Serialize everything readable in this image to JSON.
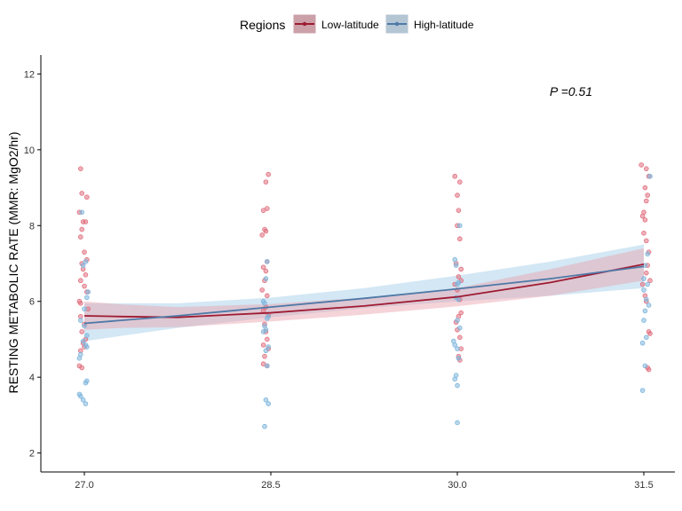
{
  "chart_data": {
    "type": "scatter",
    "legend": {
      "title": "Regions",
      "position": "top",
      "items": [
        {
          "name": "Low-latitude",
          "color": "#9e1b32"
        },
        {
          "name": "High-latitude",
          "color": "#4e79a7"
        }
      ]
    },
    "ylabel": "RESTING METABOLIC RATE (MMR: MgO2/hr)",
    "xlabel": "",
    "annotation": "P =0.51",
    "x_ticks": [
      "27.0",
      "28.5",
      "30.0",
      "31.5"
    ],
    "x_tick_values": [
      27.0,
      28.5,
      30.0,
      31.5
    ],
    "y_ticks": [
      "2",
      "4",
      "6",
      "8",
      "10",
      "12"
    ],
    "y_tick_values": [
      2,
      4,
      6,
      8,
      10,
      12
    ],
    "xlim": [
      26.65,
      31.75
    ],
    "ylim": [
      1.5,
      12.5
    ],
    "grid": false,
    "series": [
      {
        "name": "Low-latitude",
        "line_color": "#9e1b32",
        "point_color": "#e0707f",
        "band_color": "#e8a0aa",
        "fit": [
          {
            "x": 27.0,
            "y": 5.62,
            "lo": 5.25,
            "hi": 6.0
          },
          {
            "x": 27.3,
            "y": 5.6,
            "lo": 5.3,
            "hi": 5.92
          },
          {
            "x": 27.75,
            "y": 5.58,
            "lo": 5.32,
            "hi": 5.85
          },
          {
            "x": 28.5,
            "y": 5.7,
            "lo": 5.47,
            "hi": 5.93
          },
          {
            "x": 29.25,
            "y": 5.88,
            "lo": 5.65,
            "hi": 6.1
          },
          {
            "x": 30.0,
            "y": 6.12,
            "lo": 5.87,
            "hi": 6.35
          },
          {
            "x": 30.75,
            "y": 6.5,
            "lo": 6.15,
            "hi": 6.85
          },
          {
            "x": 31.5,
            "y": 6.98,
            "lo": 6.55,
            "hi": 7.4
          }
        ],
        "points": [
          {
            "x": 26.97,
            "y": 9.5
          },
          {
            "x": 26.98,
            "y": 8.85
          },
          {
            "x": 27.02,
            "y": 8.75
          },
          {
            "x": 26.96,
            "y": 8.35
          },
          {
            "x": 26.99,
            "y": 8.1
          },
          {
            "x": 27.01,
            "y": 8.1
          },
          {
            "x": 26.98,
            "y": 7.9
          },
          {
            "x": 26.97,
            "y": 7.7
          },
          {
            "x": 27.0,
            "y": 7.3
          },
          {
            "x": 27.02,
            "y": 7.1
          },
          {
            "x": 26.98,
            "y": 7.0
          },
          {
            "x": 26.99,
            "y": 6.85
          },
          {
            "x": 27.01,
            "y": 6.7
          },
          {
            "x": 26.97,
            "y": 6.55
          },
          {
            "x": 27.0,
            "y": 6.4
          },
          {
            "x": 27.02,
            "y": 6.25
          },
          {
            "x": 26.96,
            "y": 6.0
          },
          {
            "x": 26.97,
            "y": 5.95
          },
          {
            "x": 27.03,
            "y": 5.8
          },
          {
            "x": 26.97,
            "y": 5.6
          },
          {
            "x": 27.0,
            "y": 5.4
          },
          {
            "x": 26.98,
            "y": 5.2
          },
          {
            "x": 27.01,
            "y": 5.0
          },
          {
            "x": 26.99,
            "y": 4.9
          },
          {
            "x": 27.0,
            "y": 4.8
          },
          {
            "x": 26.97,
            "y": 4.7
          },
          {
            "x": 26.96,
            "y": 4.3
          },
          {
            "x": 26.98,
            "y": 4.25
          },
          {
            "x": 28.48,
            "y": 9.35
          },
          {
            "x": 28.46,
            "y": 9.15
          },
          {
            "x": 28.47,
            "y": 8.45
          },
          {
            "x": 28.44,
            "y": 8.4
          },
          {
            "x": 28.45,
            "y": 7.9
          },
          {
            "x": 28.46,
            "y": 7.85
          },
          {
            "x": 28.43,
            "y": 7.75
          },
          {
            "x": 28.47,
            "y": 7.05
          },
          {
            "x": 28.44,
            "y": 6.9
          },
          {
            "x": 28.46,
            "y": 6.8
          },
          {
            "x": 28.45,
            "y": 6.55
          },
          {
            "x": 28.43,
            "y": 6.3
          },
          {
            "x": 28.47,
            "y": 6.15
          },
          {
            "x": 28.46,
            "y": 5.85
          },
          {
            "x": 28.44,
            "y": 5.75
          },
          {
            "x": 28.48,
            "y": 5.65
          },
          {
            "x": 28.45,
            "y": 5.4
          },
          {
            "x": 28.46,
            "y": 5.2
          },
          {
            "x": 28.47,
            "y": 5.0
          },
          {
            "x": 28.44,
            "y": 4.85
          },
          {
            "x": 28.48,
            "y": 4.75
          },
          {
            "x": 28.45,
            "y": 4.55
          },
          {
            "x": 28.44,
            "y": 4.35
          },
          {
            "x": 28.47,
            "y": 4.3
          },
          {
            "x": 29.98,
            "y": 9.3
          },
          {
            "x": 30.02,
            "y": 9.15
          },
          {
            "x": 30.0,
            "y": 8.8
          },
          {
            "x": 30.01,
            "y": 8.4
          },
          {
            "x": 30.0,
            "y": 8.0
          },
          {
            "x": 30.02,
            "y": 7.65
          },
          {
            "x": 29.99,
            "y": 7.0
          },
          {
            "x": 30.03,
            "y": 6.85
          },
          {
            "x": 30.01,
            "y": 6.65
          },
          {
            "x": 30.03,
            "y": 6.55
          },
          {
            "x": 29.98,
            "y": 6.45
          },
          {
            "x": 30.0,
            "y": 6.3
          },
          {
            "x": 30.02,
            "y": 6.05
          },
          {
            "x": 30.03,
            "y": 5.7
          },
          {
            "x": 30.01,
            "y": 5.6
          },
          {
            "x": 29.99,
            "y": 5.45
          },
          {
            "x": 30.0,
            "y": 5.25
          },
          {
            "x": 30.02,
            "y": 5.05
          },
          {
            "x": 30.03,
            "y": 4.75
          },
          {
            "x": 30.01,
            "y": 4.55
          },
          {
            "x": 30.02,
            "y": 4.45
          },
          {
            "x": 31.48,
            "y": 9.6
          },
          {
            "x": 31.52,
            "y": 9.5
          },
          {
            "x": 31.54,
            "y": 9.3
          },
          {
            "x": 31.51,
            "y": 9.0
          },
          {
            "x": 31.53,
            "y": 8.8
          },
          {
            "x": 31.52,
            "y": 8.65
          },
          {
            "x": 31.5,
            "y": 8.35
          },
          {
            "x": 31.49,
            "y": 8.25
          },
          {
            "x": 31.51,
            "y": 8.15
          },
          {
            "x": 31.5,
            "y": 7.8
          },
          {
            "x": 31.52,
            "y": 7.6
          },
          {
            "x": 31.54,
            "y": 7.3
          },
          {
            "x": 31.53,
            "y": 6.95
          },
          {
            "x": 31.52,
            "y": 6.75
          },
          {
            "x": 31.55,
            "y": 6.55
          },
          {
            "x": 31.49,
            "y": 6.45
          },
          {
            "x": 31.51,
            "y": 6.15
          },
          {
            "x": 31.52,
            "y": 6.0
          },
          {
            "x": 31.54,
            "y": 5.2
          },
          {
            "x": 31.55,
            "y": 5.15
          },
          {
            "x": 31.53,
            "y": 4.25
          },
          {
            "x": 31.54,
            "y": 4.2
          }
        ]
      },
      {
        "name": "High-latitude",
        "line_color": "#4e79a7",
        "point_color": "#7eb6dd",
        "band_color": "#9ec9e6",
        "fit": [
          {
            "x": 27.0,
            "y": 5.42,
            "lo": 4.95,
            "hi": 5.95
          },
          {
            "x": 27.75,
            "y": 5.62,
            "lo": 5.3,
            "hi": 5.95
          },
          {
            "x": 28.5,
            "y": 5.85,
            "lo": 5.58,
            "hi": 6.1
          },
          {
            "x": 29.25,
            "y": 6.08,
            "lo": 5.82,
            "hi": 6.35
          },
          {
            "x": 30.0,
            "y": 6.33,
            "lo": 6.0,
            "hi": 6.68
          },
          {
            "x": 30.75,
            "y": 6.6,
            "lo": 6.15,
            "hi": 7.05
          },
          {
            "x": 31.5,
            "y": 6.92,
            "lo": 6.35,
            "hi": 7.5
          }
        ],
        "points": [
          {
            "x": 26.98,
            "y": 8.35
          },
          {
            "x": 27.01,
            "y": 7.05
          },
          {
            "x": 26.99,
            "y": 6.95
          },
          {
            "x": 27.03,
            "y": 6.25
          },
          {
            "x": 27.02,
            "y": 6.1
          },
          {
            "x": 27.0,
            "y": 5.8
          },
          {
            "x": 26.97,
            "y": 5.5
          },
          {
            "x": 27.0,
            "y": 5.35
          },
          {
            "x": 27.02,
            "y": 5.1
          },
          {
            "x": 26.99,
            "y": 4.95
          },
          {
            "x": 27.01,
            "y": 4.85
          },
          {
            "x": 27.02,
            "y": 4.8
          },
          {
            "x": 26.97,
            "y": 4.6
          },
          {
            "x": 26.96,
            "y": 4.5
          },
          {
            "x": 27.02,
            "y": 3.9
          },
          {
            "x": 27.01,
            "y": 3.85
          },
          {
            "x": 26.96,
            "y": 3.55
          },
          {
            "x": 26.97,
            "y": 3.5
          },
          {
            "x": 26.99,
            "y": 3.4
          },
          {
            "x": 27.01,
            "y": 3.3
          },
          {
            "x": 28.47,
            "y": 7.05
          },
          {
            "x": 28.46,
            "y": 6.6
          },
          {
            "x": 28.44,
            "y": 6.0
          },
          {
            "x": 28.45,
            "y": 5.95
          },
          {
            "x": 28.48,
            "y": 5.6
          },
          {
            "x": 28.47,
            "y": 5.55
          },
          {
            "x": 28.45,
            "y": 5.35
          },
          {
            "x": 28.46,
            "y": 5.25
          },
          {
            "x": 28.44,
            "y": 5.2
          },
          {
            "x": 28.48,
            "y": 4.8
          },
          {
            "x": 28.46,
            "y": 4.7
          },
          {
            "x": 28.47,
            "y": 4.3
          },
          {
            "x": 28.46,
            "y": 3.4
          },
          {
            "x": 28.48,
            "y": 3.3
          },
          {
            "x": 28.45,
            "y": 2.7
          },
          {
            "x": 30.02,
            "y": 8.0
          },
          {
            "x": 29.98,
            "y": 7.1
          },
          {
            "x": 29.99,
            "y": 6.95
          },
          {
            "x": 30.01,
            "y": 6.5
          },
          {
            "x": 30.0,
            "y": 6.45
          },
          {
            "x": 29.99,
            "y": 6.1
          },
          {
            "x": 30.01,
            "y": 6.05
          },
          {
            "x": 30.0,
            "y": 5.5
          },
          {
            "x": 30.02,
            "y": 5.3
          },
          {
            "x": 29.97,
            "y": 4.95
          },
          {
            "x": 29.98,
            "y": 4.85
          },
          {
            "x": 30.0,
            "y": 4.75
          },
          {
            "x": 30.01,
            "y": 4.5
          },
          {
            "x": 29.99,
            "y": 4.05
          },
          {
            "x": 29.98,
            "y": 3.95
          },
          {
            "x": 30.0,
            "y": 3.78
          },
          {
            "x": 30.0,
            "y": 2.8
          },
          {
            "x": 31.55,
            "y": 9.3
          },
          {
            "x": 31.53,
            "y": 7.25
          },
          {
            "x": 31.51,
            "y": 6.95
          },
          {
            "x": 31.5,
            "y": 6.6
          },
          {
            "x": 31.53,
            "y": 6.45
          },
          {
            "x": 31.5,
            "y": 6.3
          },
          {
            "x": 31.52,
            "y": 6.05
          },
          {
            "x": 31.54,
            "y": 5.9
          },
          {
            "x": 31.51,
            "y": 5.75
          },
          {
            "x": 31.5,
            "y": 5.5
          },
          {
            "x": 31.52,
            "y": 5.05
          },
          {
            "x": 31.49,
            "y": 4.9
          },
          {
            "x": 31.51,
            "y": 4.3
          },
          {
            "x": 31.49,
            "y": 3.65
          }
        ]
      }
    ]
  }
}
